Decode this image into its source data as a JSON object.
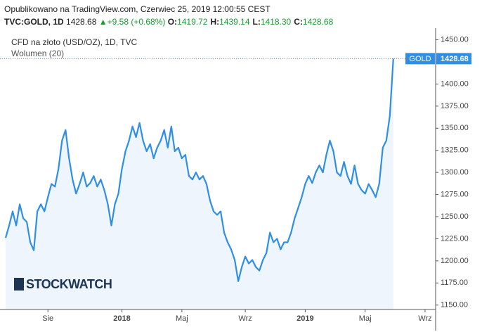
{
  "header": {
    "published": "Opublikowano na TradingView.com, Czerwiec 25, 2019 12:00:55 CEST",
    "symbol": "TVC:GOLD, 1D",
    "price": "1428.68",
    "arrow": "▲",
    "change": "+9.58 (+0.68%)",
    "ohlc": [
      {
        "key": "O:",
        "value": "1419.72"
      },
      {
        "key": "H:",
        "value": "1439.14"
      },
      {
        "key": "L:",
        "value": "1418.30"
      },
      {
        "key": "C:",
        "value": "1428.68"
      }
    ]
  },
  "watermark": "STOCKWATCH",
  "chart_data": {
    "type": "line",
    "title": "CFD na złoto (USD/OZ), 1D, TVC",
    "subtitle": "Wolumen (20)",
    "series_name": "GOLD",
    "color": "#2f8ee5",
    "area_color": "#eef5fc",
    "categories": [
      null,
      null,
      null,
      null,
      null,
      null,
      null,
      null,
      null,
      null,
      null,
      null,
      "Sie",
      null,
      null,
      null,
      null,
      null,
      null,
      null,
      null,
      null,
      null,
      null,
      null,
      null,
      null,
      null,
      null,
      null,
      null,
      null,
      null,
      "2018",
      null,
      null,
      null,
      null,
      null,
      null,
      null,
      null,
      null,
      null,
      null,
      null,
      null,
      null,
      null,
      null,
      "Maj",
      null,
      null,
      null,
      null,
      null,
      null,
      null,
      null,
      null,
      null,
      null,
      null,
      null,
      null,
      null,
      null,
      null,
      "Wrz",
      null,
      null,
      null,
      null,
      null,
      null,
      null,
      null,
      null,
      null,
      null,
      null,
      null,
      null,
      null,
      null,
      "2019",
      null,
      null,
      null,
      null,
      null,
      null,
      null,
      null,
      null,
      null,
      null,
      null,
      null,
      null,
      null,
      null,
      "Maj",
      null,
      null,
      null,
      null,
      null,
      null,
      null,
      null,
      null,
      null,
      null,
      null,
      null,
      null,
      null,
      null,
      "Wrz",
      null,
      null,
      null
    ],
    "values": [
      1226,
      1240,
      1256,
      1240,
      1264,
      1248,
      1244,
      1221,
      1212,
      1256,
      1264,
      1256,
      1272,
      1287,
      1284,
      1304,
      1336,
      1348,
      1316,
      1292,
      1276,
      1287,
      1300,
      1284,
      1288,
      1296,
      1284,
      1292,
      1280,
      1264,
      1240,
      1264,
      1276,
      1304,
      1324,
      1336,
      1352,
      1340,
      1356,
      1336,
      1324,
      1332,
      1316,
      1328,
      1336,
      1348,
      1328,
      1352,
      1324,
      1328,
      1316,
      1320,
      1296,
      1292,
      1300,
      1292,
      1296,
      1287,
      1268,
      1256,
      1252,
      1256,
      1232,
      1221,
      1213,
      1201,
      1177,
      1193,
      1205,
      1197,
      1201,
      1193,
      1189,
      1201,
      1209,
      1232,
      1221,
      1225,
      1213,
      1221,
      1221,
      1232,
      1248,
      1260,
      1272,
      1287,
      1296,
      1288,
      1300,
      1308,
      1300,
      1320,
      1336,
      1324,
      1300,
      1296,
      1312,
      1296,
      1287,
      1308,
      1287,
      1280,
      1276,
      1287,
      1280,
      1272,
      1287,
      1328,
      1336,
      1364,
      1428.68,
      null,
      null,
      null,
      null,
      null,
      null,
      null,
      null,
      null,
      null,
      null,
      null
    ],
    "ylim": [
      1145,
      1460
    ],
    "yticks": [
      {
        "value": 1150,
        "label": "1150.00"
      },
      {
        "value": 1175,
        "label": "1175.00"
      },
      {
        "value": 1200,
        "label": "1200.00"
      },
      {
        "value": 1225,
        "label": "1225.00"
      },
      {
        "value": 1250,
        "label": "1250.00"
      },
      {
        "value": 1275,
        "label": "1275.00"
      },
      {
        "value": 1300,
        "label": "1300.00"
      },
      {
        "value": 1325,
        "label": "1325.00"
      },
      {
        "value": 1350,
        "label": "1350.00"
      },
      {
        "value": 1375,
        "label": "1375.00"
      },
      {
        "value": 1400,
        "label": "1400.00"
      },
      {
        "value": 1425,
        "label": "1425.00"
      },
      {
        "value": 1450,
        "label": "1450.00"
      }
    ],
    "grid": false
  }
}
